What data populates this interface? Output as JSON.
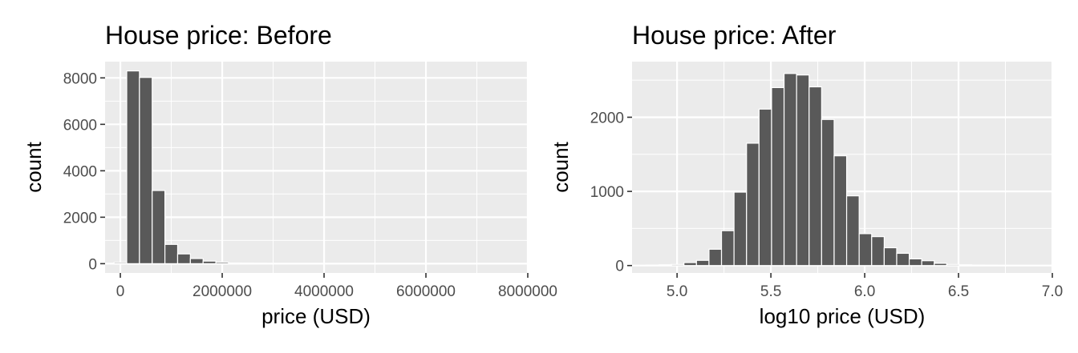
{
  "colors": {
    "panel": "#ebebeb",
    "grid": "#ffffff",
    "bar_fill": "#595959",
    "bar_stroke": "#ffffff",
    "tick_text": "#4d4d4d",
    "tick_mark": "#333333"
  },
  "chart_data": [
    {
      "type": "bar",
      "title": "House price: Before",
      "xlabel": "price (USD)",
      "ylabel": "count",
      "xlim": [
        -300000,
        8000000
      ],
      "ylim": [
        -400,
        8700
      ],
      "x_ticks": [
        0,
        2000000,
        4000000,
        6000000,
        8000000
      ],
      "x_tick_labels": [
        "0",
        "2000000",
        "4000000",
        "6000000",
        "8000000"
      ],
      "y_ticks": [
        0,
        2000,
        4000,
        6000,
        8000
      ],
      "y_tick_labels": [
        "0",
        "2000",
        "4000",
        "6000",
        "8000"
      ],
      "grid": true,
      "bin_width": 250000,
      "bin_starts": [
        -125000,
        125000,
        375000,
        625000,
        875000,
        1125000,
        1375000,
        1625000,
        1875000,
        2125000,
        2375000,
        2625000,
        2875000,
        3125000,
        3375000,
        3625000,
        3875000,
        4125000,
        4375000,
        4625000,
        4875000,
        5125000,
        5375000,
        5625000,
        5875000,
        6125000,
        6375000,
        6625000,
        6875000,
        7125000,
        7375000,
        7625000
      ],
      "values": [
        50,
        8300,
        8020,
        3150,
        830,
        420,
        220,
        110,
        60,
        30,
        20,
        15,
        8,
        5,
        3,
        2,
        2,
        1,
        1,
        1,
        1,
        1,
        0,
        0,
        0,
        0,
        0,
        0,
        0,
        0,
        0,
        1
      ]
    },
    {
      "type": "bar",
      "title": "House price: After",
      "xlabel": "log10 price (USD)",
      "ylabel": "count",
      "xlim": [
        4.76,
        7.0
      ],
      "ylim": [
        -100,
        2750
      ],
      "x_ticks": [
        5.0,
        5.5,
        6.0,
        6.5,
        7.0
      ],
      "x_tick_labels": [
        "5.0",
        "5.5",
        "6.0",
        "6.5",
        "7.0"
      ],
      "y_ticks": [
        0,
        1000,
        2000
      ],
      "y_tick_labels": [
        "0",
        "1000",
        "2000"
      ],
      "grid": true,
      "bin_width": 0.0667,
      "bin_starts": [
        4.8366,
        4.9033,
        4.97,
        5.0367,
        5.1034,
        5.1701,
        5.2368,
        5.3035,
        5.3702,
        5.4369,
        5.5036,
        5.5703,
        5.637,
        5.7037,
        5.7704,
        5.8371,
        5.9038,
        5.9705,
        6.0372,
        6.1039,
        6.1706,
        6.2373,
        6.304,
        6.3707,
        6.4374,
        6.5041,
        6.5708,
        6.6375,
        6.7042,
        6.7709,
        6.8376,
        6.9043
      ],
      "values": [
        5,
        10,
        15,
        40,
        70,
        220,
        470,
        990,
        1650,
        2110,
        2400,
        2590,
        2570,
        2410,
        1970,
        1480,
        940,
        430,
        390,
        240,
        165,
        90,
        65,
        30,
        15,
        10,
        5,
        3,
        2,
        1,
        1,
        1
      ]
    }
  ]
}
